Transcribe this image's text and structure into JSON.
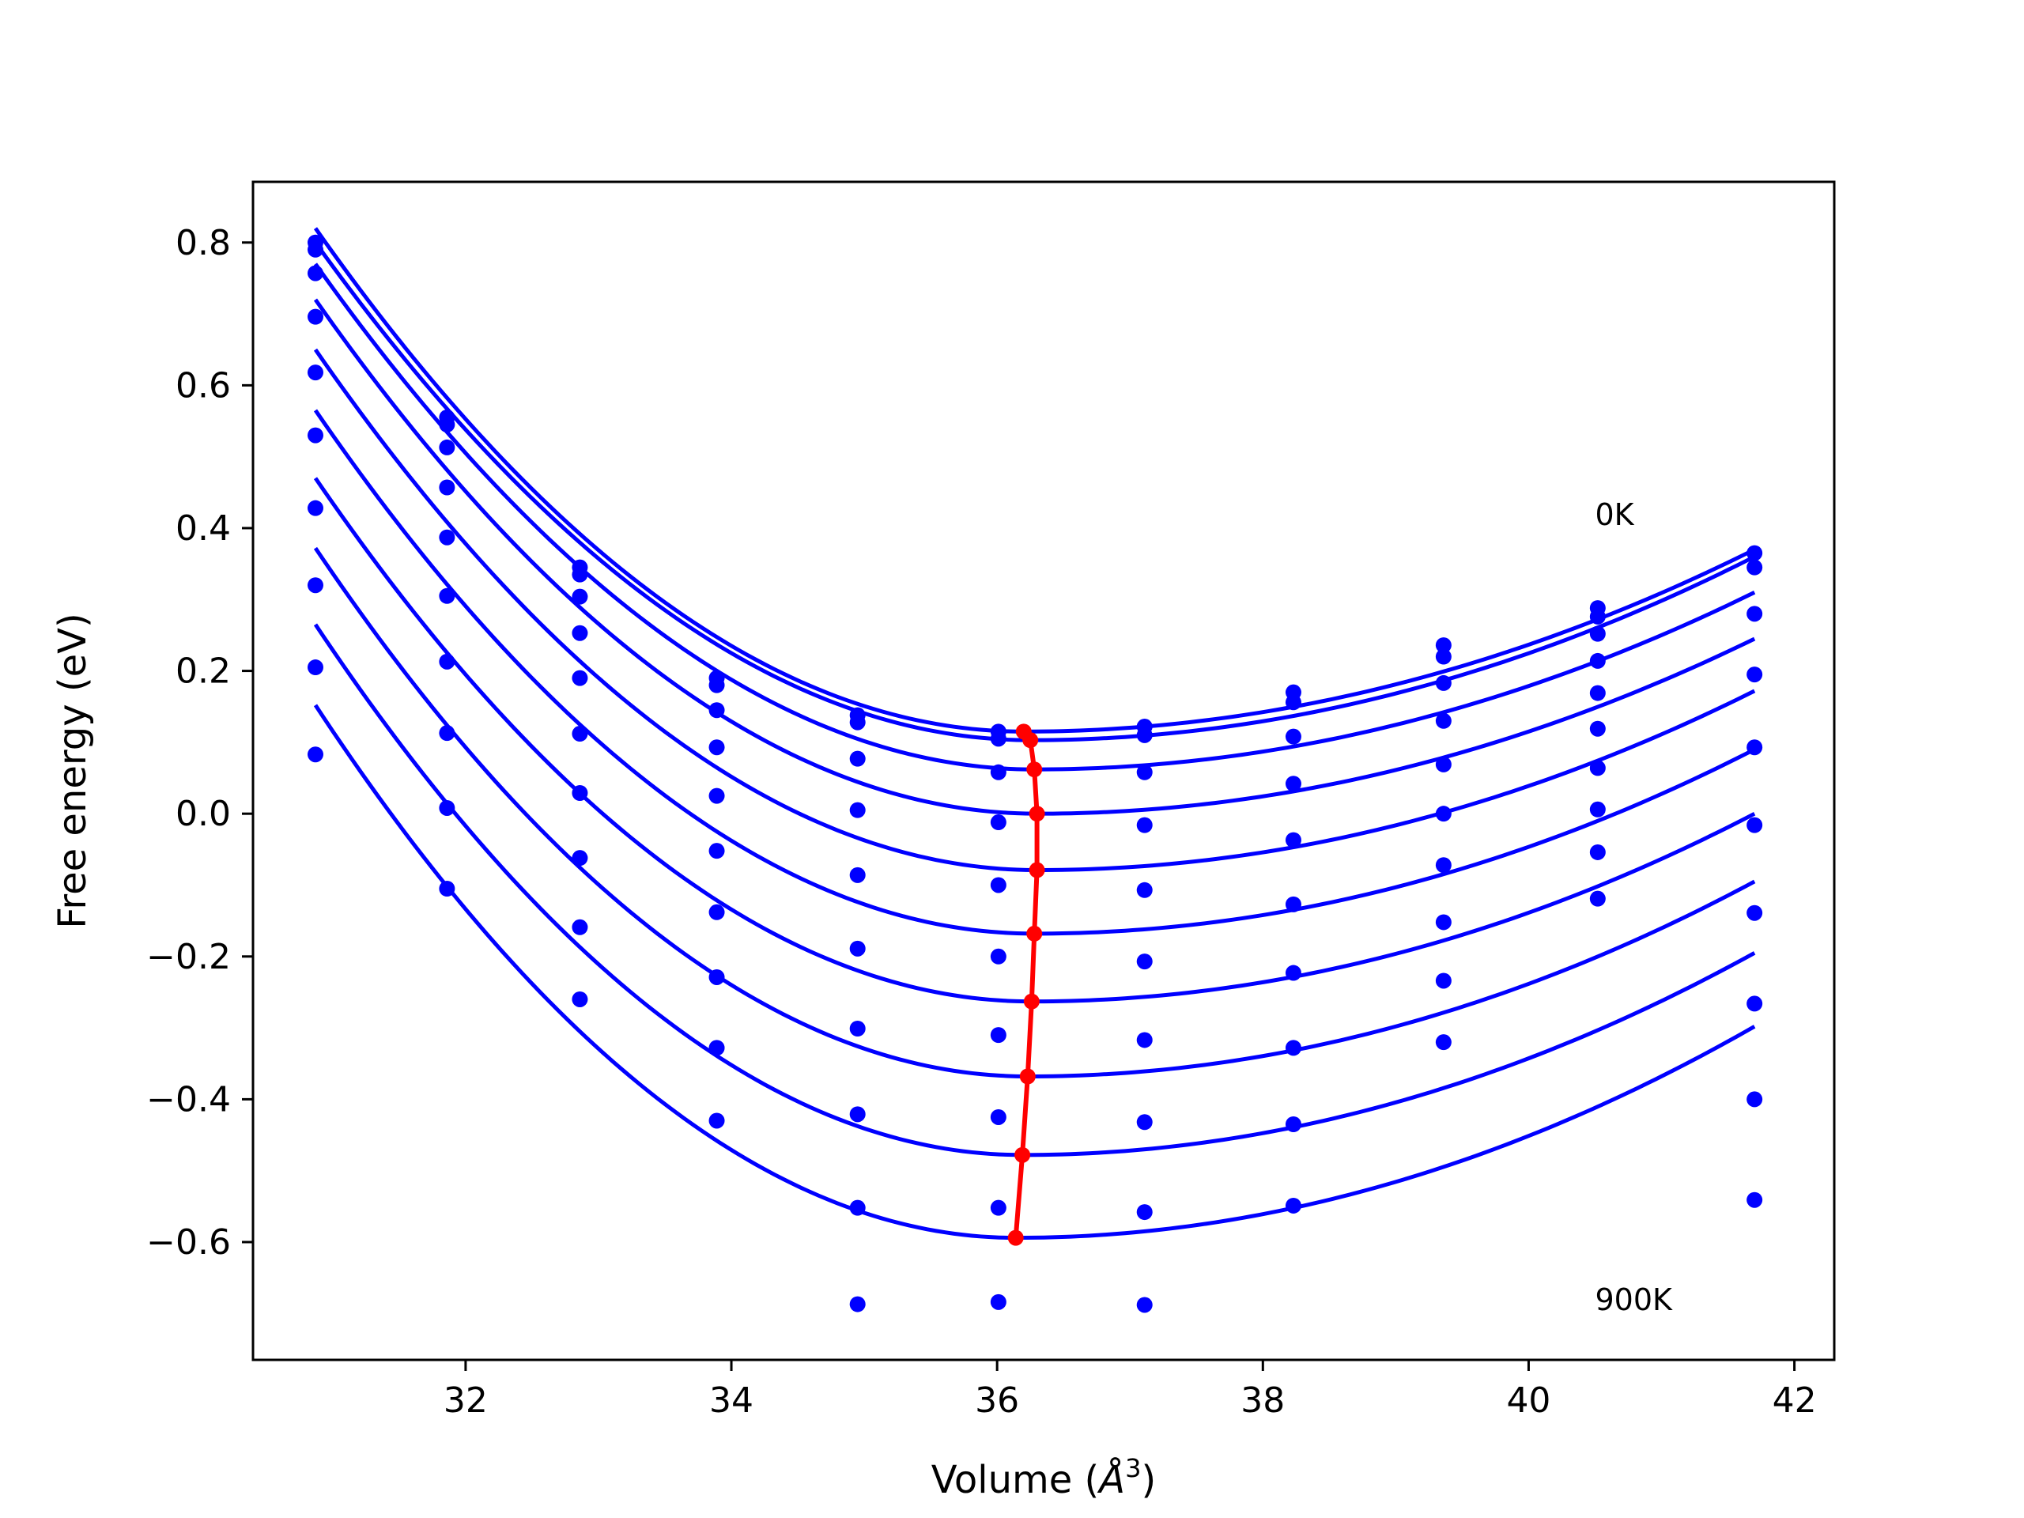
{
  "chart_data": {
    "type": "line",
    "title": "",
    "xlabel_prefix": "Volume (",
    "xlabel_symbol": "Å",
    "xlabel_exp": "3",
    "xlabel_suffix": ")",
    "ylabel": "Free energy (eV)",
    "xlim": [
      30.4,
      42.3
    ],
    "ylim": [
      -0.765,
      0.885
    ],
    "xticks": [
      32,
      34,
      36,
      38,
      40,
      42
    ],
    "yticks": [
      -0.6,
      -0.4,
      -0.2,
      0.0,
      0.2,
      0.4,
      0.6,
      0.8
    ],
    "xtick_labels": [
      "32",
      "34",
      "36",
      "38",
      "40",
      "42"
    ],
    "ytick_labels": [
      "−0.6",
      "−0.4",
      "−0.2",
      "0.0",
      "0.2",
      "0.4",
      "0.6",
      "0.8"
    ],
    "grid": false,
    "legend": "none",
    "annotations": [
      {
        "text": "0K",
        "x": 40.5,
        "y": 0.42
      },
      {
        "text": "900K",
        "x": 40.5,
        "y": -0.68
      }
    ],
    "colors": {
      "fit": "#0000ff",
      "points": "#0000ff",
      "minimum_path": "#ff0000",
      "axes": "#000000"
    },
    "volumes": [
      30.87,
      31.86,
      32.86,
      33.89,
      34.95,
      36.01,
      37.11,
      38.23,
      39.36,
      40.52,
      41.7
    ],
    "fit_range": [
      30.87,
      41.7
    ],
    "series": [
      {
        "curve": {
          "vmin": 36.2,
          "fmin": 0.115,
          "fstart": 0.82,
          "fend": 0.37
        },
        "points": [
          0.8,
          0.555,
          0.345,
          0.19,
          0.138,
          0.115,
          0.122,
          0.17,
          0.236,
          0.288,
          0.365
        ]
      },
      {
        "curve": {
          "vmin": 36.25,
          "fmin": 0.103,
          "fstart": 0.8,
          "fend": 0.36
        },
        "points": [
          0.79,
          0.545,
          0.335,
          0.18,
          0.128,
          0.105,
          0.11,
          0.156,
          0.22,
          0.276,
          0.345
        ]
      },
      {
        "curve": {
          "vmin": 36.28,
          "fmin": 0.062,
          "fstart": 0.77,
          "fend": 0.31
        },
        "points": [
          0.757,
          0.513,
          0.304,
          0.145,
          0.077,
          0.058,
          0.058,
          0.108,
          0.183,
          0.252,
          0.28
        ]
      },
      {
        "curve": {
          "vmin": 36.3,
          "fmin": 0.0,
          "fstart": 0.72,
          "fend": 0.245
        },
        "points": [
          0.696,
          0.457,
          0.253,
          0.093,
          0.005,
          -0.012,
          -0.016,
          0.042,
          0.13,
          0.214,
          0.195
        ]
      },
      {
        "curve": {
          "vmin": 36.3,
          "fmin": -0.079,
          "fstart": 0.65,
          "fend": 0.172
        },
        "points": [
          0.618,
          0.387,
          0.19,
          0.025,
          -0.086,
          -0.1,
          -0.107,
          -0.037,
          0.069,
          0.169,
          0.093
        ]
      },
      {
        "curve": {
          "vmin": 36.28,
          "fmin": -0.168,
          "fstart": 0.565,
          "fend": 0.09
        },
        "points": [
          0.53,
          0.305,
          0.112,
          -0.052,
          -0.189,
          -0.2,
          -0.207,
          -0.127,
          0.0,
          0.119,
          -0.016
        ]
      },
      {
        "curve": {
          "vmin": 36.26,
          "fmin": -0.263,
          "fstart": 0.47,
          "fend": 0.0
        },
        "points": [
          0.428,
          0.213,
          0.029,
          -0.138,
          -0.301,
          -0.31,
          -0.317,
          -0.223,
          -0.072,
          0.064,
          -0.139
        ]
      },
      {
        "curve": {
          "vmin": 36.23,
          "fmin": -0.368,
          "fstart": 0.372,
          "fend": -0.095
        },
        "points": [
          0.32,
          0.113,
          -0.062,
          -0.229,
          -0.421,
          -0.425,
          -0.432,
          -0.328,
          -0.152,
          0.006,
          -0.266
        ]
      },
      {
        "curve": {
          "vmin": 36.19,
          "fmin": -0.478,
          "fstart": 0.265,
          "fend": -0.195
        },
        "points": [
          0.205,
          0.008,
          -0.159,
          -0.328,
          -0.552,
          -0.552,
          -0.558,
          -0.435,
          -0.234,
          -0.054,
          -0.4
        ]
      },
      {
        "curve": {
          "vmin": 36.14,
          "fmin": -0.594,
          "fstart": 0.152,
          "fend": -0.298
        },
        "points": [
          0.083,
          -0.105,
          -0.26,
          -0.43,
          -0.687,
          -0.684,
          -0.688,
          -0.549,
          -0.32,
          -0.119,
          -0.541
        ]
      }
    ],
    "minimum_path": {
      "x": [
        36.2,
        36.25,
        36.28,
        36.3,
        36.3,
        36.28,
        36.26,
        36.23,
        36.19,
        36.14
      ],
      "y": [
        0.115,
        0.103,
        0.062,
        0.0,
        -0.079,
        -0.168,
        -0.263,
        -0.368,
        -0.478,
        -0.594
      ]
    }
  }
}
